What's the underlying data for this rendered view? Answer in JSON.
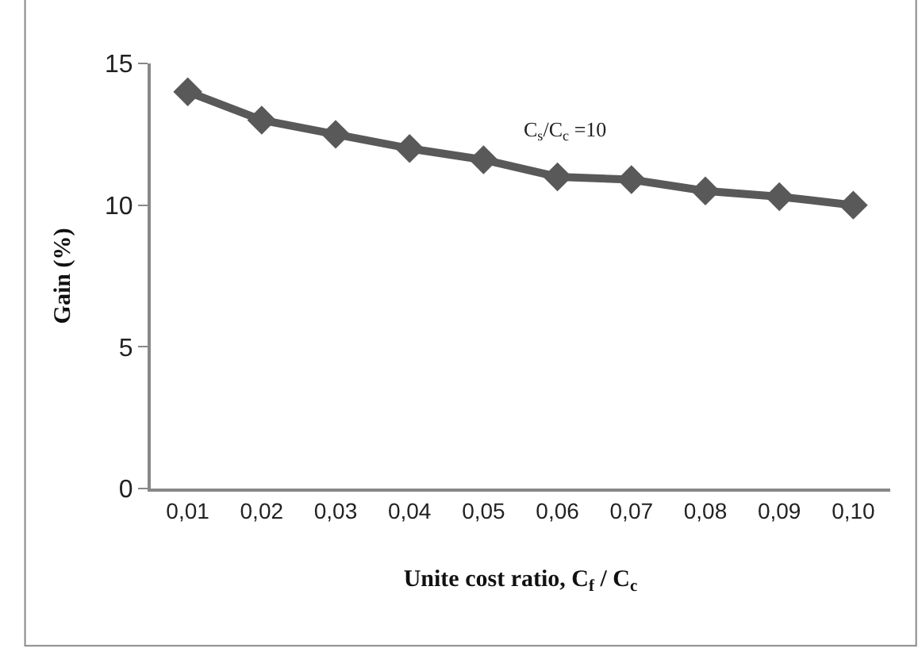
{
  "chart_data": {
    "type": "line",
    "xlabel": "Unite cost ratio, C$_{f}$ / C$_{c}$",
    "ylabel": "Gain (%)",
    "categories": [
      "0,01",
      "0,02",
      "0,03",
      "0,04",
      "0,05",
      "0,06",
      "0,07",
      "0,08",
      "0,09",
      "0,10"
    ],
    "series": [
      {
        "color": "#595959",
        "values": [
          14,
          13,
          12.5,
          12,
          11.6,
          11,
          10.9,
          10.5,
          10.3,
          10
        ]
      }
    ],
    "ylim": [
      0,
      15
    ],
    "yticks": [
      0,
      5,
      10,
      15
    ],
    "legend": false,
    "marker": "diamond",
    "line_style": "solid",
    "annotations": [
      "C$_{s}$/C$_{c}$ =10"
    ]
  }
}
